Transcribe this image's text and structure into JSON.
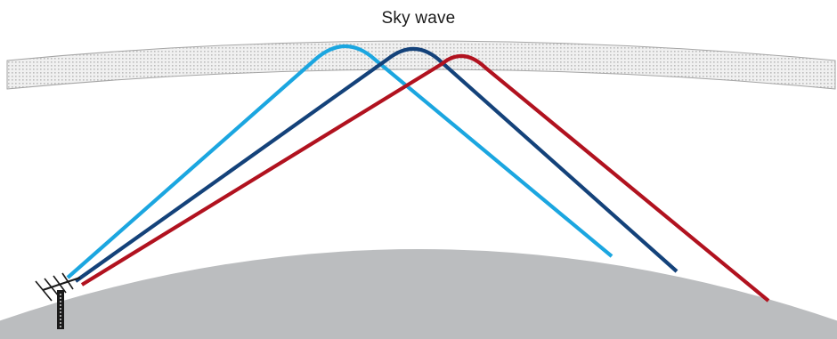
{
  "diagram": {
    "title": "Sky wave"
  },
  "colors": {
    "ionosphere_fill": "#f0f0f0",
    "ionosphere_dots": "#bdbdbd",
    "ionosphere_outline": "#a6a6a6",
    "earth": "#bbbdbf",
    "ray_light_blue": "#1ba6e0",
    "ray_dark_blue": "#14427a",
    "ray_red": "#b1121f",
    "antenna": "#1a1a1a"
  },
  "rays": [
    {
      "name": "light-blue",
      "color_key": "ray_light_blue"
    },
    {
      "name": "dark-blue",
      "color_key": "ray_dark_blue"
    },
    {
      "name": "red",
      "color_key": "ray_red"
    }
  ]
}
